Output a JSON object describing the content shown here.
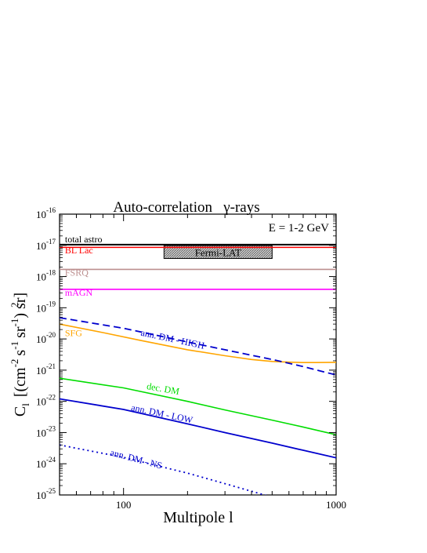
{
  "chart_data": {
    "type": "line",
    "title": "Auto-correlation   γ-rays",
    "annotation": "E = 1-2 GeV",
    "xlabel": "Multipole l",
    "ylabel": "C",
    "ylabel_sub": "l",
    "ylabel_rest": "[(cm",
    "ylabel_tail": "s",
    "ylabel_sr": "sr",
    "ylabel_end": ") sr]",
    "ylabel_exp1": "-2",
    "ylabel_exp2": "-1",
    "ylabel_exp3": "-1",
    "ylabel_exp4": "2",
    "x_scale": "log",
    "y_scale": "log",
    "xlim": [
      50,
      1000
    ],
    "ylim": [
      1e-25,
      1e-16
    ],
    "x_ticks": [
      {
        "value": 100,
        "label": "100"
      },
      {
        "value": 1000,
        "label": "1000"
      }
    ],
    "y_ticks": [
      {
        "exp": -25,
        "base": "10",
        "sup": "-25"
      },
      {
        "exp": -24,
        "base": "10",
        "sup": "-24"
      },
      {
        "exp": -23,
        "base": "10",
        "sup": "-23"
      },
      {
        "exp": -22,
        "base": "10",
        "sup": "-22"
      },
      {
        "exp": -21,
        "base": "10",
        "sup": "-21"
      },
      {
        "exp": -20,
        "base": "10",
        "sup": "-20"
      },
      {
        "exp": -19,
        "base": "10",
        "sup": "-19"
      },
      {
        "exp": -18,
        "base": "10",
        "sup": "-18"
      },
      {
        "exp": -17,
        "base": "10",
        "sup": "-17"
      },
      {
        "exp": -16,
        "base": "10",
        "sup": "-16"
      }
    ],
    "fermi_band": {
      "label": "Fermi-LAT",
      "x": [
        155,
        500
      ],
      "y": [
        3.8e-18,
        9.8e-18
      ],
      "color": "#999999"
    },
    "series": [
      {
        "name": "total astro",
        "color": "#000000",
        "dash": "solid",
        "width": 2,
        "x": [
          50,
          1000
        ],
        "y": [
          1.05e-17,
          1.05e-17
        ],
        "label_at": {
          "x": 53,
          "y": 1.25e-17
        }
      },
      {
        "name": "BL Lac",
        "color": "#ff0000",
        "dash": "solid",
        "width": 1.6,
        "x": [
          50,
          1000
        ],
        "y": [
          8.6e-18,
          8.6e-18
        ],
        "label_at": {
          "x": 53,
          "y": 5.6e-18
        }
      },
      {
        "name": "FSRQ",
        "color": "#bc8f8f",
        "dash": "solid",
        "width": 1.6,
        "x": [
          50,
          1000
        ],
        "y": [
          1.7e-18,
          1.7e-18
        ],
        "label_at": {
          "x": 53,
          "y": 1.05e-18
        }
      },
      {
        "name": "mAGN",
        "color": "#ff00ff",
        "dash": "solid",
        "width": 1.6,
        "x": [
          50,
          1000
        ],
        "y": [
          3.9e-19,
          3.9e-19
        ],
        "label_at": {
          "x": 53,
          "y": 2.4e-19
        }
      },
      {
        "name": "SFG",
        "color": "#ffa500",
        "dash": "solid",
        "width": 1.6,
        "x": [
          50,
          80,
          120,
          200,
          300,
          400,
          500,
          600,
          700,
          800,
          1000
        ],
        "y": [
          3e-20,
          1.6e-20,
          9e-21,
          4.5e-21,
          2.9e-21,
          2.2e-21,
          1.9e-21,
          1.8e-21,
          1.75e-21,
          1.75e-21,
          1.78e-21
        ],
        "label_at": {
          "x": 53,
          "y": 1.25e-20
        }
      },
      {
        "name": "ann. DM - HIGH",
        "color": "#0000cd",
        "dash": "dashed",
        "width": 1.8,
        "x": [
          50,
          100,
          200,
          300,
          500,
          700,
          1000
        ],
        "y": [
          4.8e-20,
          2.2e-20,
          8e-21,
          4.5e-21,
          2.2e-21,
          1.3e-21,
          7e-22
        ],
        "label_at": {
          "x": 120,
          "y": 1.3e-20,
          "rotate": 12
        }
      },
      {
        "name": "dec. DM",
        "color": "#00dd00",
        "dash": "solid",
        "width": 1.6,
        "x": [
          50,
          100,
          200,
          300,
          500,
          700,
          1000
        ],
        "y": [
          5.5e-22,
          2.7e-22,
          1e-22,
          5.3e-23,
          2.5e-23,
          1.5e-23,
          8.5e-24
        ],
        "label_at": {
          "x": 128,
          "y": 2.5e-22,
          "rotate": 10
        }
      },
      {
        "name": "ann. DM - LOW",
        "color": "#0000cd",
        "dash": "solid",
        "width": 1.8,
        "x": [
          50,
          100,
          200,
          300,
          500,
          700,
          1000
        ],
        "y": [
          1.2e-22,
          5.5e-23,
          1.9e-23,
          1e-23,
          4.6e-24,
          2.7e-24,
          1.55e-24
        ],
        "label_at": {
          "x": 108,
          "y": 5.2e-23,
          "rotate": 12
        }
      },
      {
        "name": "ann. DM - NS",
        "color": "#0000cd",
        "dash": "dotted",
        "width": 1.8,
        "x": [
          50,
          100,
          200,
          300,
          500
        ],
        "y": [
          4e-24,
          1.6e-24,
          5e-25,
          2.3e-25,
          8.5e-26
        ],
        "label_at": {
          "x": 86,
          "y": 1.9e-24,
          "rotate": 15
        }
      }
    ],
    "grid": false,
    "legend": "inline labels"
  }
}
